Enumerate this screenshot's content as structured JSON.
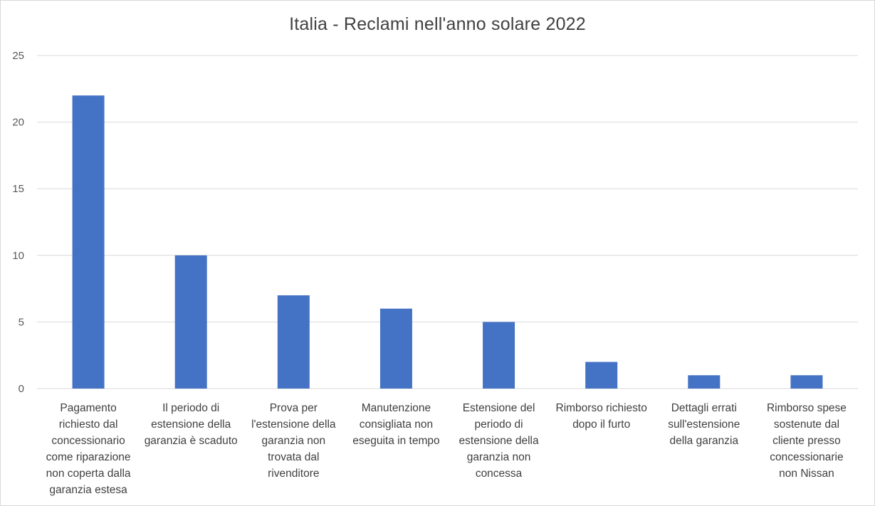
{
  "chart_data": {
    "type": "bar",
    "title": "Italia - Reclami nell'anno solare 2022",
    "xlabel": "",
    "ylabel": "",
    "ylim": [
      0,
      25
    ],
    "yticks": [
      0,
      5,
      10,
      15,
      20,
      25
    ],
    "grid": true,
    "legend": "none",
    "bar_color": "#4472c4",
    "categories": [
      [
        "Pagamento",
        "richiesto dal",
        "concessionario",
        "come riparazione",
        "non coperta dalla",
        "garanzia estesa"
      ],
      [
        "Il periodo di",
        "estensione della",
        "garanzia è scaduto"
      ],
      [
        "Prova per",
        "l'estensione della",
        "garanzia non",
        "trovata dal",
        "rivenditore"
      ],
      [
        "Manutenzione",
        "consigliata non",
        "eseguita in tempo"
      ],
      [
        "Estensione del",
        "periodo di",
        "estensione della",
        "garanzia non",
        "concessa"
      ],
      [
        "Rimborso richiesto",
        "dopo il furto"
      ],
      [
        "Dettagli errati",
        "sull'estensione",
        "della garanzia"
      ],
      [
        "Rimborso spese",
        "sostenute dal",
        "cliente presso",
        "concessionarie",
        "non Nissan"
      ]
    ],
    "values": [
      22,
      10,
      7,
      6,
      5,
      2,
      1,
      1
    ]
  }
}
